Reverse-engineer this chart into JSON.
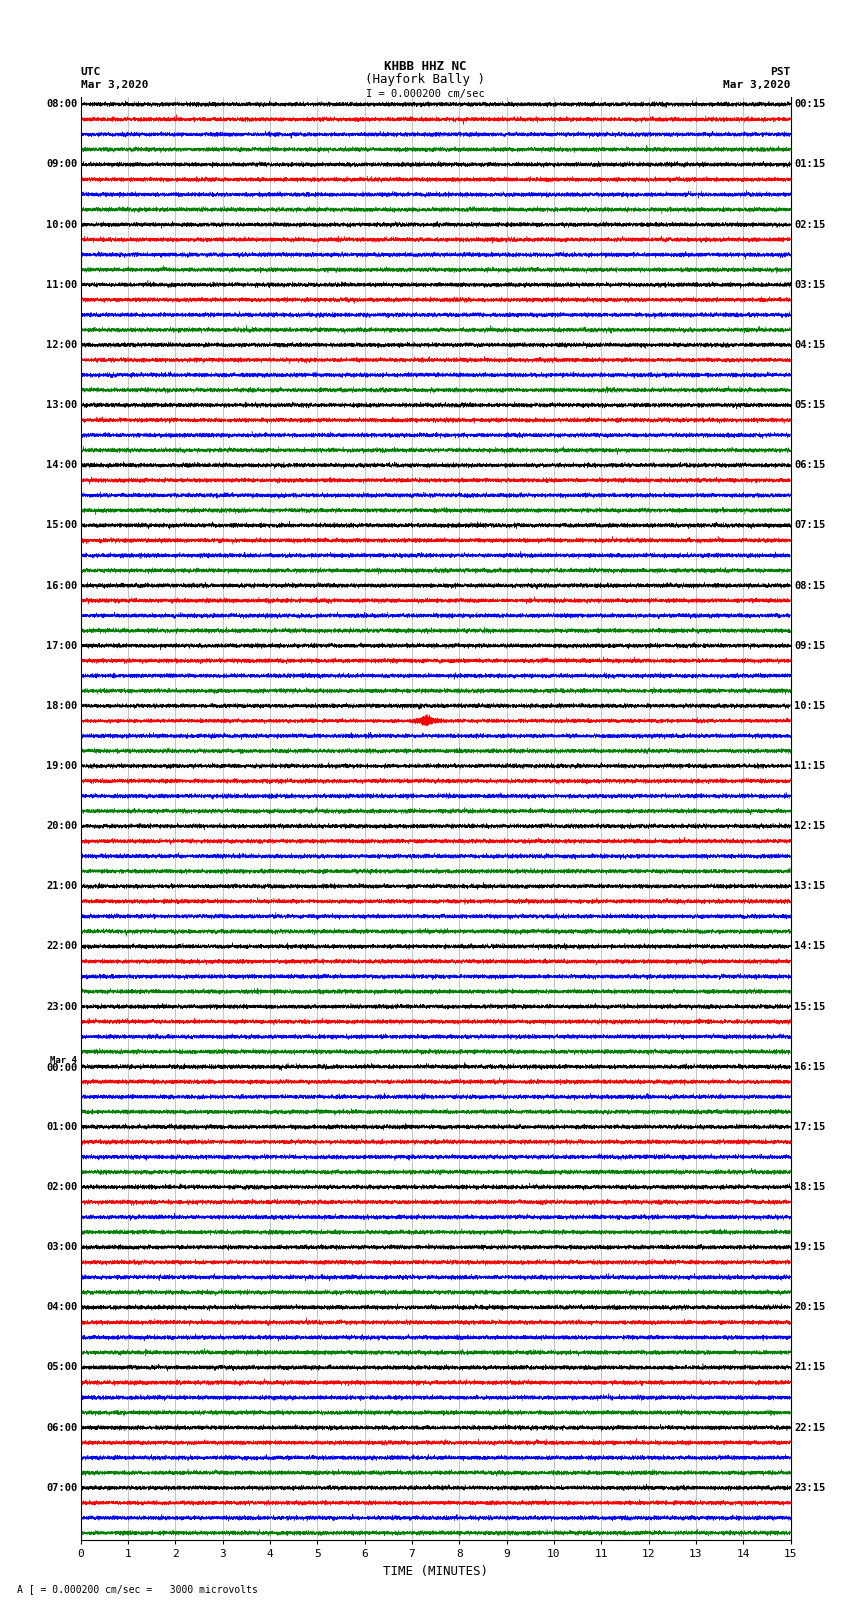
{
  "title_line1": "KHBB HHZ NC",
  "title_line2": "(Hayfork Bally )",
  "scale_text": "I = 0.000200 cm/sec",
  "footer_text": "A [ = 0.000200 cm/sec =   3000 microvolts",
  "utc_label": "UTC",
  "utc_date": "Mar 3,2020",
  "pst_label": "PST",
  "pst_date": "Mar 3,2020",
  "xlabel": "TIME (MINUTES)",
  "xmin": 0,
  "xmax": 15,
  "trace_colors": [
    "black",
    "red",
    "blue",
    "green"
  ],
  "background_color": "white",
  "grid_color": "#999999",
  "utc_times": [
    "08:00",
    "09:00",
    "10:00",
    "11:00",
    "12:00",
    "13:00",
    "14:00",
    "15:00",
    "16:00",
    "17:00",
    "18:00",
    "19:00",
    "20:00",
    "21:00",
    "22:00",
    "23:00",
    "00:00",
    "01:00",
    "02:00",
    "03:00",
    "04:00",
    "05:00",
    "06:00",
    "07:00"
  ],
  "pst_times": [
    "00:15",
    "01:15",
    "02:15",
    "03:15",
    "04:15",
    "05:15",
    "06:15",
    "07:15",
    "08:15",
    "09:15",
    "10:15",
    "11:15",
    "12:15",
    "13:15",
    "14:15",
    "15:15",
    "16:15",
    "17:15",
    "18:15",
    "19:15",
    "20:15",
    "21:15",
    "22:15",
    "23:15"
  ],
  "mar4_hour_index": 16,
  "n_hours": 24,
  "traces_per_hour": 4,
  "noise_amplitude": 0.06,
  "spike_amplitude": 0.18,
  "earthquake_hour": 10,
  "earthquake_minute": 7.3,
  "earthquake_amplitude": 0.38,
  "earthquake_duration": 0.5,
  "figwidth": 8.5,
  "figheight": 16.13,
  "dpi": 100
}
